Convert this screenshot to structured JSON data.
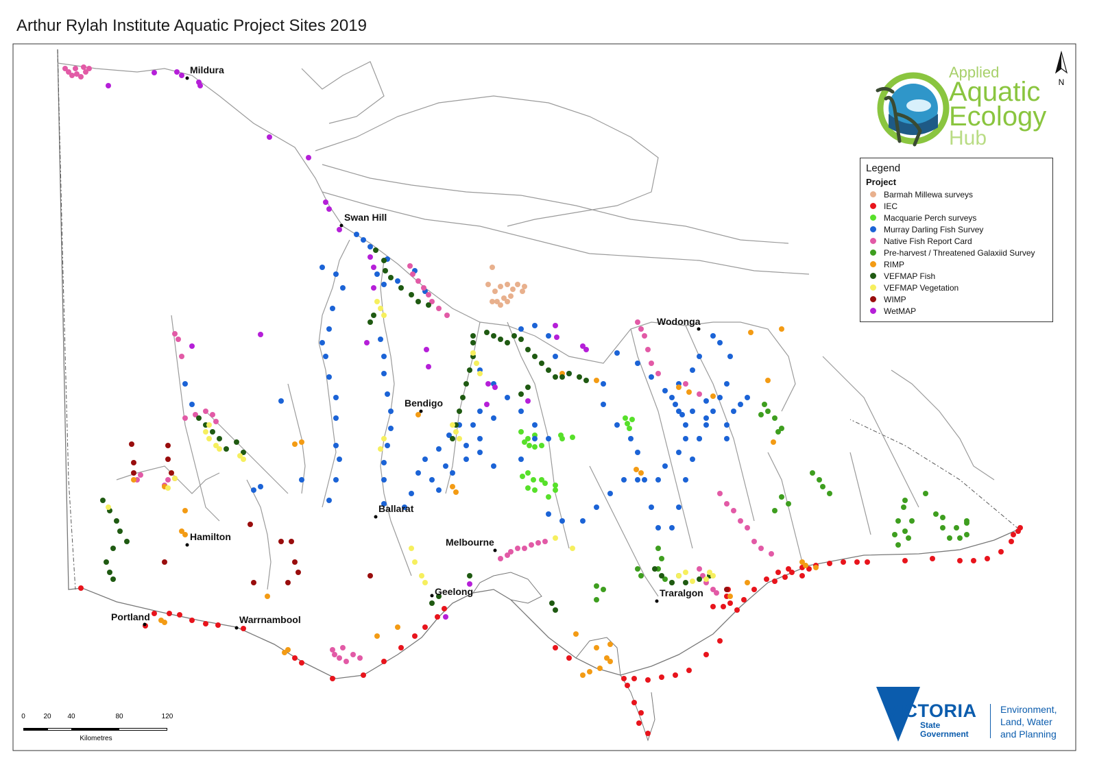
{
  "title": "Arthur Rylah Institute Aquatic Project Sites 2019",
  "legend": {
    "heading": "Legend",
    "subheading": "Project",
    "items": [
      {
        "label": "Barmah Millewa surveys",
        "color": "#e8b08d"
      },
      {
        "label": "IEC",
        "color": "#e8141c"
      },
      {
        "label": "Macquarie Perch surveys",
        "color": "#57e02a"
      },
      {
        "label": "Murray Darling Fish Survey",
        "color": "#1b63d6"
      },
      {
        "label": "Native Fish Report Card",
        "color": "#e25aa6"
      },
      {
        "label": "Pre-harvest / Threatened Galaxiid Survey",
        "color": "#3e9e1f"
      },
      {
        "label": "RIMP",
        "color": "#f39b14"
      },
      {
        "label": "VEFMAP Fish",
        "color": "#1f5a12"
      },
      {
        "label": "VEFMAP Vegetation",
        "color": "#f6ef5e"
      },
      {
        "label": "WIMP",
        "color": "#990d0d"
      },
      {
        "label": "WetMAP",
        "color": "#b51fd8"
      }
    ]
  },
  "cities": [
    {
      "name": "Mildura"
    },
    {
      "name": "Swan Hill"
    },
    {
      "name": "Wodonga"
    },
    {
      "name": "Bendigo"
    },
    {
      "name": "Ballarat"
    },
    {
      "name": "Hamilton"
    },
    {
      "name": "Melbourne"
    },
    {
      "name": "Geelong"
    },
    {
      "name": "Traralgon"
    },
    {
      "name": "Portland"
    },
    {
      "name": "Warrnambool"
    }
  ],
  "scale": {
    "ticks": [
      "0",
      "20",
      "40",
      "80",
      "120"
    ],
    "unit": "Kilometres"
  },
  "north_label": "N",
  "logos": {
    "hub": {
      "line1": "Applied",
      "line2": "Aquatic",
      "line3": "Ecology",
      "line4": "Hub"
    },
    "victoria": {
      "word": "VICTORIA",
      "sub1": "State",
      "sub2": "Government"
    },
    "department": {
      "line1": "Environment,",
      "line2": "Land, Water",
      "line3": "and Planning"
    }
  }
}
